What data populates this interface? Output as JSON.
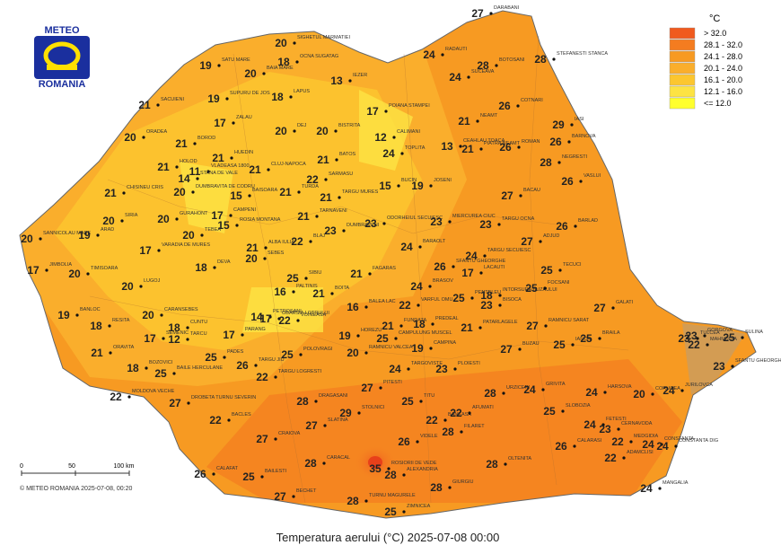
{
  "logo": {
    "line1": "METEO",
    "line2": "ROMANIA"
  },
  "legend": {
    "unit": "°C",
    "classes": [
      {
        "label": "> 32.0",
        "color": "#f05a1e"
      },
      {
        "label": "28.1 - 32.0",
        "color": "#f47c20"
      },
      {
        "label": "24.1 - 28.0",
        "color": "#f79a22"
      },
      {
        "label": "20.1 - 24.0",
        "color": "#faae2c"
      },
      {
        "label": "16.1 - 20.0",
        "color": "#fcc62f"
      },
      {
        "label": "12.1 - 16.0",
        "color": "#fde343"
      },
      {
        "label": "<= 12.0",
        "color": "#ffff2e"
      }
    ]
  },
  "scale": {
    "ticks": [
      "0",
      "50",
      "100 km"
    ]
  },
  "copyright": "© METEO ROMANIA 2025-07-08, 00:20",
  "caption": "Temperatura aerului (°C) 2025-07-08 00:00",
  "stations": [
    {
      "name": "DARABANI",
      "temp": 27
    },
    {
      "name": "SIGHETUL MARMATIEI",
      "temp": 20
    },
    {
      "name": "OCNA SUGATAG",
      "temp": 18
    },
    {
      "name": "SATU MARE",
      "temp": 19
    },
    {
      "name": "BAIA MARE",
      "temp": 20
    },
    {
      "name": "SUPURU DE JOS",
      "temp": 19
    },
    {
      "name": "STEFANESTI STANCA",
      "temp": 28
    },
    {
      "name": "RADAUTI",
      "temp": 24
    },
    {
      "name": "BOTOSANI",
      "temp": 28
    },
    {
      "name": "SUCEAVA",
      "temp": 24
    },
    {
      "name": "IEZER",
      "temp": 13
    },
    {
      "name": "LAPUS",
      "temp": 18
    },
    {
      "name": "SACUIENI",
      "temp": 21
    },
    {
      "name": "ZALAU",
      "temp": 17
    },
    {
      "name": "POIANA STAMPEI",
      "temp": 17
    },
    {
      "name": "NEAMT",
      "temp": 21
    },
    {
      "name": "COTNARI",
      "temp": 26
    },
    {
      "name": "IASI",
      "temp": 29
    },
    {
      "name": "ORADEA",
      "temp": 20
    },
    {
      "name": "BISTRITA",
      "temp": 20
    },
    {
      "name": "DEJ",
      "temp": 20
    },
    {
      "name": "CALIMANI",
      "temp": 12
    },
    {
      "name": "BOROD",
      "temp": 21
    },
    {
      "name": "BARNOVA",
      "temp": 26
    },
    {
      "name": "VLADEASA 1800",
      "temp": 11
    },
    {
      "name": "HUEDIN",
      "temp": 21
    },
    {
      "name": "CLUJ-NAPOCA",
      "temp": 21
    },
    {
      "name": "BATOS",
      "temp": 21
    },
    {
      "name": "TOPLITA",
      "temp": 24
    },
    {
      "name": "CEAHLAU TOACA",
      "temp": 13
    },
    {
      "name": "PIATRA NEAMT",
      "temp": 21
    },
    {
      "name": "ROMAN",
      "temp": 26
    },
    {
      "name": "NEGRESTI",
      "temp": 28
    },
    {
      "name": "HOLOD",
      "temp": 21
    },
    {
      "name": "STANA DE VALE",
      "temp": 14
    },
    {
      "name": "SARMASU",
      "temp": 22
    },
    {
      "name": "BUCIN",
      "temp": 15
    },
    {
      "name": "JOSENI",
      "temp": 19
    },
    {
      "name": "CHISINEU CRIS",
      "temp": 21
    },
    {
      "name": "DUMBRAVITA DE CODRU",
      "temp": 20
    },
    {
      "name": "BAISOARA",
      "temp": 15
    },
    {
      "name": "TURDA",
      "temp": 21
    },
    {
      "name": "TARGU MURES",
      "temp": 21
    },
    {
      "name": "BACAU",
      "temp": 27
    },
    {
      "name": "VASLUI",
      "temp": 26
    },
    {
      "name": "CAMPENI",
      "temp": 17
    },
    {
      "name": "TARNAVENI",
      "temp": 21
    },
    {
      "name": "ODORHEIUL SECUIESC",
      "temp": 23
    },
    {
      "name": "MIERCUREA CIUC",
      "temp": 23
    },
    {
      "name": "TARGU OCNA",
      "temp": 23
    },
    {
      "name": "SIRIA",
      "temp": 20
    },
    {
      "name": "GURAHONT",
      "temp": 20
    },
    {
      "name": "ROSIA MONTANA",
      "temp": 15
    },
    {
      "name": "SANNICOLAU MARE",
      "temp": 20
    },
    {
      "name": "ARAD",
      "temp": 19
    },
    {
      "name": "TEBEA",
      "temp": 20
    },
    {
      "name": "BLAJ",
      "temp": 22
    },
    {
      "name": "DUMBRAVENI",
      "temp": 23
    },
    {
      "name": "BARLAD",
      "temp": 26
    },
    {
      "name": "ADJUD",
      "temp": 27
    },
    {
      "name": "VARADIA DE MURES",
      "temp": 17
    },
    {
      "name": "ALBA IULIA",
      "temp": 21
    },
    {
      "name": "SEBES",
      "temp": 20
    },
    {
      "name": "BARAOLT",
      "temp": 24
    },
    {
      "name": "TARGU SECUIESC",
      "temp": 24
    },
    {
      "name": "SFANTU GHEORGHE",
      "temp": 26
    },
    {
      "name": "JIMBOLIA",
      "temp": 17
    },
    {
      "name": "TIMISOARA",
      "temp": 20
    },
    {
      "name": "DEVA",
      "temp": 18
    },
    {
      "name": "SIBIU",
      "temp": 25
    },
    {
      "name": "FAGARAS",
      "temp": 21
    },
    {
      "name": "LACAUTI",
      "temp": 17
    },
    {
      "name": "TECUCI",
      "temp": 25
    },
    {
      "name": "LUGOJ",
      "temp": 20
    },
    {
      "name": "PALTINIS",
      "temp": 16
    },
    {
      "name": "BOITA",
      "temp": 21
    },
    {
      "name": "BRASOV",
      "temp": 24
    },
    {
      "name": "INTORSURA BUZAULUI",
      "temp": 18
    },
    {
      "name": "FOCSANI",
      "temp": 25
    },
    {
      "name": "BALEA LAC",
      "temp": 16
    },
    {
      "name": "VARFUL OMU",
      "temp": 22
    },
    {
      "name": "BISOCA",
      "temp": 23
    },
    {
      "name": "PENTELEU",
      "temp": 25
    },
    {
      "name": "BANLOC",
      "temp": 19
    },
    {
      "name": "CARANSEBES",
      "temp": 20
    },
    {
      "name": "PETROSANI",
      "temp": 14
    },
    {
      "name": "OBARSIA LOTRULUI",
      "temp": 17
    },
    {
      "name": "VOINEASA",
      "temp": 22
    },
    {
      "name": "FUNDATA",
      "temp": 21
    },
    {
      "name": "PREDEAL",
      "temp": 18
    },
    {
      "name": "GALATI",
      "temp": 27
    },
    {
      "name": "RAMNICU SARAT",
      "temp": 27
    },
    {
      "name": "PATARLAGELE",
      "temp": 21
    },
    {
      "name": "RESITA",
      "temp": 18
    },
    {
      "name": "SEMENIC",
      "temp": 17
    },
    {
      "name": "CUNTU",
      "temp": 18
    },
    {
      "name": "TARCU",
      "temp": 12
    },
    {
      "name": "PARANG",
      "temp": 17
    },
    {
      "name": "HOREZU",
      "temp": 19
    },
    {
      "name": "TULCEA",
      "temp": 23
    },
    {
      "name": "GORGOVA",
      "temp": 23
    },
    {
      "name": "SULINA",
      "temp": 25
    },
    {
      "name": "MAHMUDIA",
      "temp": 22
    },
    {
      "name": "SFANTU GHEORGHE",
      "temp": 23
    },
    {
      "name": "BRAILA",
      "temp": 25
    },
    {
      "name": "IANCA",
      "temp": 25
    },
    {
      "name": "BUZAU",
      "temp": 27
    },
    {
      "name": "CAMPINA",
      "temp": 19
    },
    {
      "name": "PLOIESTI",
      "temp": 23
    },
    {
      "name": "TARGOVISTE",
      "temp": 24
    },
    {
      "name": "ORAVITA",
      "temp": 21
    },
    {
      "name": "BOZOVICI",
      "temp": 18
    },
    {
      "name": "BAILE HERCULANE",
      "temp": 25
    },
    {
      "name": "PADES",
      "temp": 25
    },
    {
      "name": "TARGU JIU",
      "temp": 26
    },
    {
      "name": "POLOVRAGI",
      "temp": 25
    },
    {
      "name": "RAMNICU VALCEA",
      "temp": 20
    },
    {
      "name": "TARGU LOGRESTI",
      "temp": 22
    },
    {
      "name": "DRAGASANI",
      "temp": 28
    },
    {
      "name": "PITESTI",
      "temp": 27
    },
    {
      "name": "MOLDOVA VECHE",
      "temp": 22
    },
    {
      "name": "DROBETA TURNU SEVERIN",
      "temp": 27
    },
    {
      "name": "URZICENI",
      "temp": 28
    },
    {
      "name": "GRIVITA",
      "temp": 24
    },
    {
      "name": "HARSOVA",
      "temp": 24
    },
    {
      "name": "CORUGEA",
      "temp": 20
    },
    {
      "name": "JURILOVCA",
      "temp": 24
    },
    {
      "name": "TITU",
      "temp": 25
    },
    {
      "name": "SLOBOZIA",
      "temp": 25
    },
    {
      "name": "BACLES",
      "temp": 22
    },
    {
      "name": "SLATINA",
      "temp": 27
    },
    {
      "name": "STOLNICI",
      "temp": 29
    },
    {
      "name": "BANEASA",
      "temp": 22
    },
    {
      "name": "AFUMATI",
      "temp": 22
    },
    {
      "name": "FILARET",
      "temp": 28
    },
    {
      "name": "FETESTI",
      "temp": 24
    },
    {
      "name": "CERNAVODA",
      "temp": 23
    },
    {
      "name": "CRAIOVA",
      "temp": 27
    },
    {
      "name": "VIDELE",
      "temp": 26
    },
    {
      "name": "CALARASI",
      "temp": 26
    },
    {
      "name": "CONSTANTA",
      "temp": 24
    },
    {
      "name": "MEDGIDIA",
      "temp": 22
    },
    {
      "name": "CALAFAT",
      "temp": 26
    },
    {
      "name": "BAILESTI",
      "temp": 25
    },
    {
      "name": "CARACAL",
      "temp": 28
    },
    {
      "name": "ROSIORII DE VEDE",
      "temp": 35
    },
    {
      "name": "ALEXANDRIA",
      "temp": 28
    },
    {
      "name": "OLTENITA",
      "temp": 28
    },
    {
      "name": "ADAMCLISI",
      "temp": 22
    },
    {
      "name": "CONSTANTA DIG",
      "temp": 24
    },
    {
      "name": "GIURGIU",
      "temp": 28
    },
    {
      "name": "BECHET",
      "temp": 27
    },
    {
      "name": "TURNU MAGURELE",
      "temp": 28
    },
    {
      "name": "ZIMNICEA",
      "temp": 25
    },
    {
      "name": "MANGALIA",
      "temp": 24
    },
    {
      "name": "CAMPULUNG MUSCEL",
      "temp": 25
    }
  ]
}
